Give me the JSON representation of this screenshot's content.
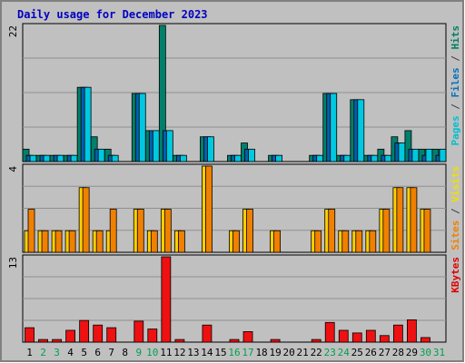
{
  "chart_data": {
    "type": "bar",
    "title": "Daily usage for December 2023",
    "days": [
      "1",
      "2",
      "3",
      "4",
      "5",
      "6",
      "7",
      "8",
      "9",
      "10",
      "11",
      "12",
      "13",
      "14",
      "15",
      "16",
      "17",
      "18",
      "19",
      "20",
      "21",
      "22",
      "23",
      "24",
      "25",
      "26",
      "27",
      "28",
      "29",
      "30",
      "31"
    ],
    "weekend_days": [
      "2",
      "3",
      "9",
      "10",
      "16",
      "17",
      "23",
      "24",
      "30",
      "31"
    ],
    "panels": [
      {
        "id": "top",
        "ymax_label": "22",
        "ylim": [
          0,
          22
        ],
        "legend": [
          {
            "text": "Pages",
            "color": "#00c0d0"
          },
          {
            "text": " / ",
            "color": "#404040"
          },
          {
            "text": "Files",
            "color": "#0070c0"
          },
          {
            "text": " / ",
            "color": "#404040"
          },
          {
            "text": "Hits",
            "color": "#008060"
          }
        ],
        "series": [
          {
            "name": "Hits",
            "color": "#00806a",
            "values": [
              2,
              1,
              1,
              1,
              12,
              4,
              2,
              0,
              11,
              5,
              22,
              1,
              0,
              4,
              0,
              1,
              3,
              0,
              1,
              0,
              0,
              1,
              11,
              1,
              10,
              1,
              2,
              4,
              5,
              2,
              2
            ]
          },
          {
            "name": "Files",
            "color": "#0060b0",
            "values": [
              1,
              1,
              1,
              1,
              12,
              2,
              1,
              0,
              11,
              5,
              5,
              1,
              0,
              4,
              0,
              1,
              2,
              0,
              1,
              0,
              0,
              1,
              11,
              1,
              10,
              1,
              1,
              3,
              2,
              1,
              1
            ]
          },
          {
            "name": "Pages",
            "color": "#00c8e0",
            "values": [
              1,
              1,
              1,
              1,
              12,
              2,
              1,
              0,
              11,
              5,
              5,
              1,
              0,
              4,
              0,
              1,
              2,
              0,
              1,
              0,
              0,
              1,
              11,
              1,
              10,
              1,
              1,
              3,
              2,
              2,
              2
            ]
          }
        ]
      },
      {
        "id": "middle",
        "ymax_label": "4",
        "ylim": [
          0,
          4
        ],
        "legend": [
          {
            "text": "Sites",
            "color": "#f08000"
          },
          {
            "text": " / ",
            "color": "#404040"
          },
          {
            "text": "Visits",
            "color": "#f0e000"
          }
        ],
        "series": [
          {
            "name": "Visits",
            "color": "#ffd000",
            "values": [
              1,
              1,
              1,
              1,
              3,
              1,
              1,
              0,
              2,
              1,
              2,
              1,
              0,
              4,
              0,
              1,
              2,
              0,
              1,
              0,
              0,
              1,
              2,
              1,
              1,
              1,
              2,
              3,
              3,
              2,
              0
            ]
          },
          {
            "name": "Sites",
            "color": "#f08000",
            "values": [
              2,
              1,
              1,
              1,
              3,
              1,
              2,
              0,
              2,
              1,
              2,
              1,
              0,
              4,
              0,
              1,
              2,
              0,
              1,
              0,
              0,
              1,
              2,
              1,
              1,
              1,
              2,
              3,
              3,
              2,
              0
            ]
          }
        ]
      },
      {
        "id": "bottom",
        "ymax_label": "13",
        "ylim": [
          0,
          13
        ],
        "legend": [
          {
            "text": "KBytes",
            "color": "#e00000"
          }
        ],
        "series": [
          {
            "name": "KBytes",
            "color": "#ee1111",
            "values": [
              2.2,
              0.4,
              0.4,
              1.8,
              3.3,
              2.6,
              2.2,
              0,
              3.2,
              2.0,
              13,
              0.4,
              0,
              2.6,
              0,
              0.4,
              1.6,
              0,
              0.4,
              0,
              0,
              0.4,
              3.0,
              1.8,
              1.4,
              1.8,
              1.0,
              2.6,
              3.4,
              0.7,
              0
            ]
          }
        ]
      }
    ],
    "colors": {
      "background": "#c0c0c0",
      "title": "#0000c0",
      "weekday_label": "#000000",
      "weekend_label": "#00a050",
      "grid": "#909090"
    }
  }
}
